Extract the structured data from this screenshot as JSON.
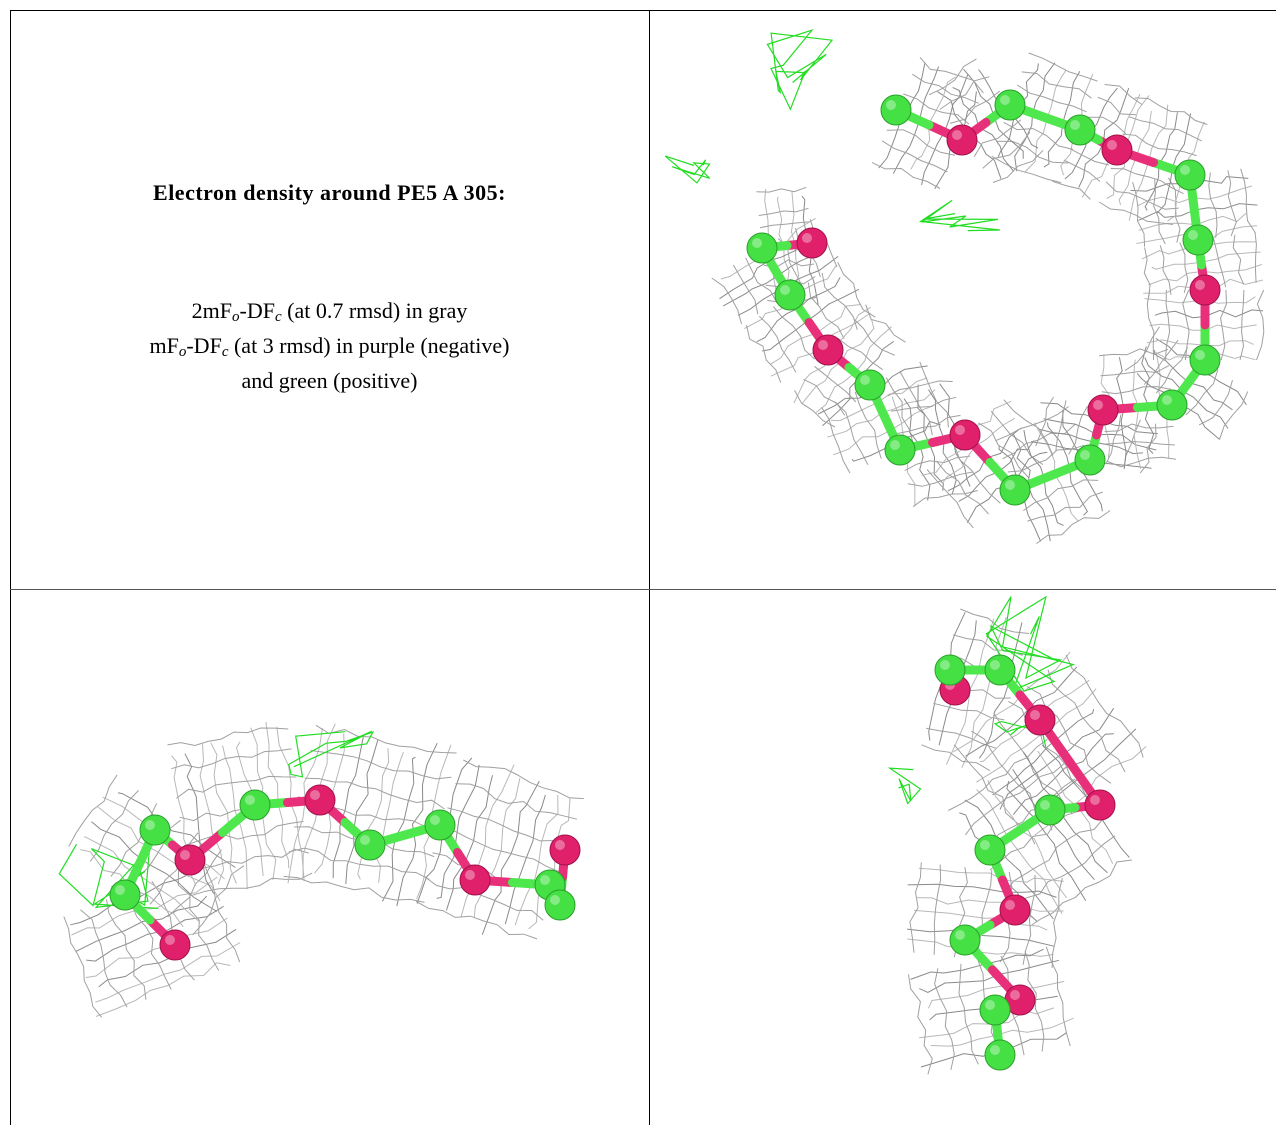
{
  "header": {
    "title": "Electron density around PE5 A 305:"
  },
  "legend": {
    "lines": [
      [
        "2mF",
        "o",
        "-DF",
        "c",
        " (at 0.7 rmsd) in gray"
      ],
      [
        "mF",
        "o",
        "-DF",
        "c",
        " (at 3 rmsd) in purple (negative)"
      ],
      [
        "and green (positive)"
      ]
    ]
  }
}
